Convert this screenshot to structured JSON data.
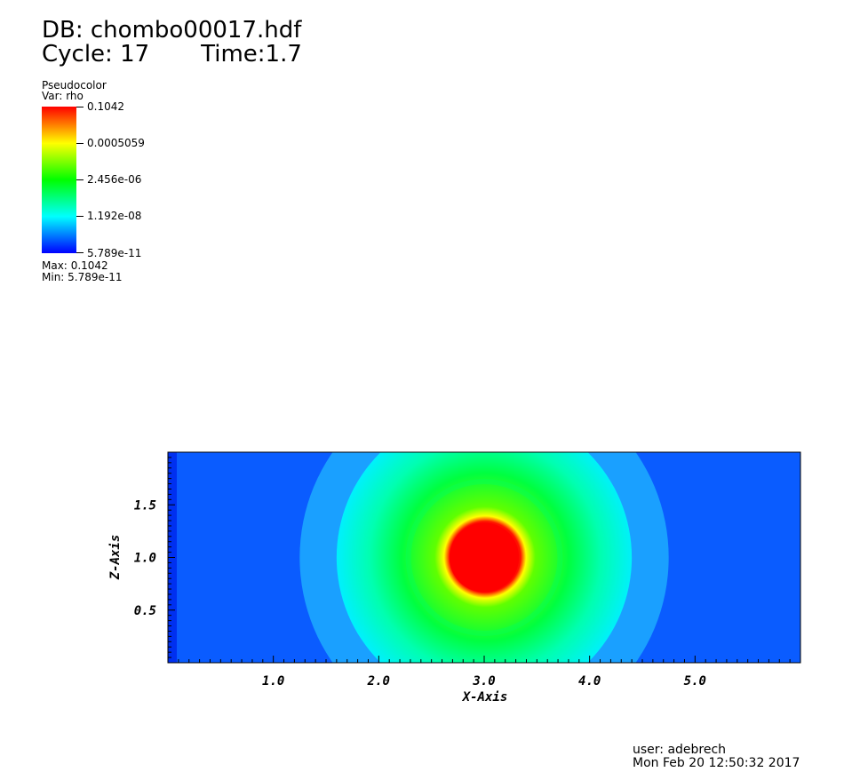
{
  "header": {
    "db": "DB: chombo00017.hdf",
    "cycle": "Cycle: 17",
    "time": "Time:1.7"
  },
  "legend": {
    "plot_type": "Pseudocolor",
    "var": "Var: rho",
    "ticks": [
      "0.1042",
      "0.0005059",
      "2.456e-06",
      "1.192e-08",
      "5.789e-11"
    ],
    "max_label": "Max:",
    "max_value": "0.1042",
    "min_label": "Min:",
    "min_value": "5.789e-11"
  },
  "footer": {
    "user": "user: adebrech",
    "datetime": "Mon Feb 20 12:50:32 2017"
  },
  "chart_data": {
    "type": "heatmap",
    "xlabel": "X-Axis",
    "ylabel": "Z-Axis",
    "xlim": [
      0.0,
      6.0
    ],
    "ylim": [
      0.0,
      2.0
    ],
    "x_ticks": [
      "1.0",
      "2.0",
      "3.0",
      "4.0",
      "5.0"
    ],
    "x_tick_values": [
      1.0,
      2.0,
      3.0,
      4.0,
      5.0
    ],
    "y_ticks": [
      "1.5",
      "1.0",
      "0.5"
    ],
    "y_tick_values": [
      1.5,
      1.0,
      0.5
    ],
    "colormap": [
      "#ff0000",
      "#ffff00",
      "#00ff00",
      "#00ffff",
      "#0000ff"
    ],
    "features": [
      {
        "shape": "disc",
        "center": [
          3.0,
          1.0
        ],
        "radius": 0.33,
        "color": "#ff0000"
      },
      {
        "shape": "ring",
        "center": [
          3.0,
          1.0
        ],
        "radius": 0.72,
        "color": "#00ff60"
      },
      {
        "shape": "ring",
        "center": [
          3.0,
          1.0
        ],
        "radius": 1.4,
        "color": "#00d8ff"
      },
      {
        "shape": "ring",
        "center": [
          3.0,
          1.0
        ],
        "radius": 1.75,
        "color": "#1aa0ff"
      }
    ],
    "background_color": "#0a5cff"
  }
}
